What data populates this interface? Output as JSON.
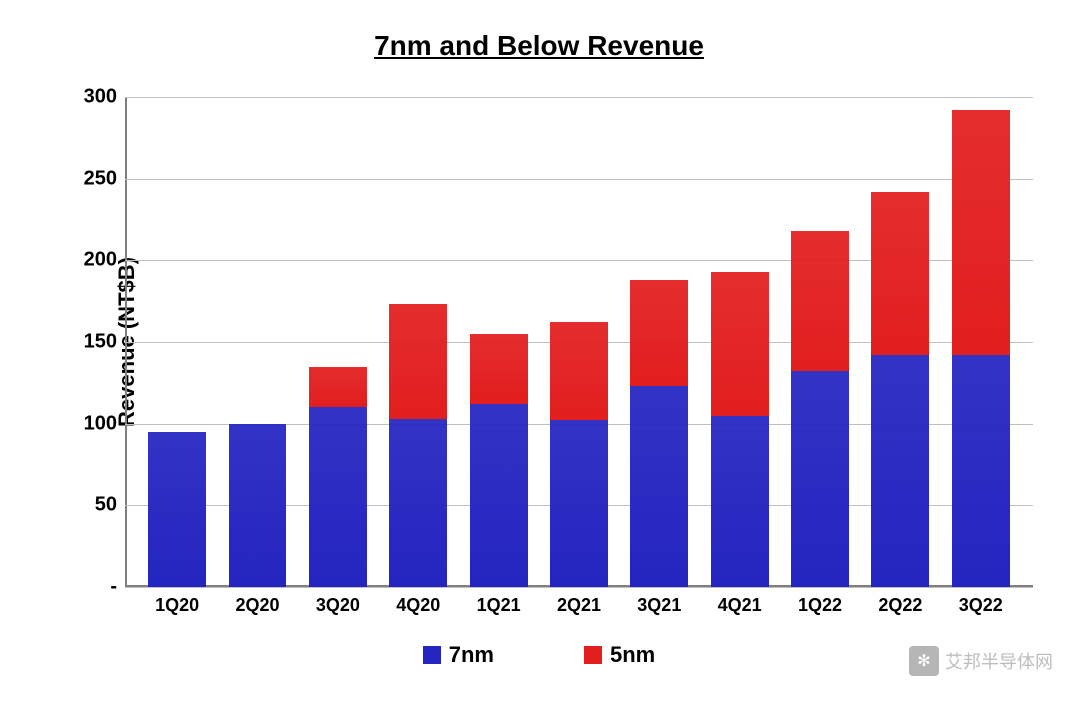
{
  "chart": {
    "type": "stacked-bar",
    "title": "7nm and Below Revenue",
    "title_fontsize": 28,
    "ylabel": "Revenue (NT$B)",
    "ylabel_fontsize": 22,
    "ylim": [
      0,
      300
    ],
    "ytick_step": 50,
    "yticks": [
      {
        "value": 0,
        "label": "-"
      },
      {
        "value": 50,
        "label": "50"
      },
      {
        "value": 100,
        "label": "100"
      },
      {
        "value": 150,
        "label": "150"
      },
      {
        "value": 200,
        "label": "200"
      },
      {
        "value": 250,
        "label": "250"
      },
      {
        "value": 300,
        "label": "300"
      }
    ],
    "categories": [
      "1Q20",
      "2Q20",
      "3Q20",
      "4Q20",
      "1Q21",
      "2Q21",
      "3Q21",
      "4Q21",
      "1Q22",
      "2Q22",
      "3Q22"
    ],
    "series": [
      {
        "name": "7nm",
        "color": "#2424c0",
        "values": [
          95,
          100,
          110,
          103,
          112,
          102,
          123,
          105,
          132,
          142,
          142
        ]
      },
      {
        "name": "5nm",
        "color": "#e21e1e",
        "values": [
          0,
          0,
          25,
          70,
          43,
          60,
          65,
          88,
          86,
          100,
          150
        ]
      }
    ],
    "bar_width": 0.72,
    "background_color": "#ffffff",
    "grid_color": "#bfbfbf",
    "axis_color": "#808080",
    "tick_fontsize": 20,
    "xtick_fontsize": 18,
    "legend_fontsize": 22,
    "legend": [
      {
        "label": "7nm",
        "color": "#2424c0"
      },
      {
        "label": "5nm",
        "color": "#e21e1e"
      }
    ]
  },
  "watermark": {
    "text": "艾邦半导体网",
    "icon_glyph": "✻"
  }
}
